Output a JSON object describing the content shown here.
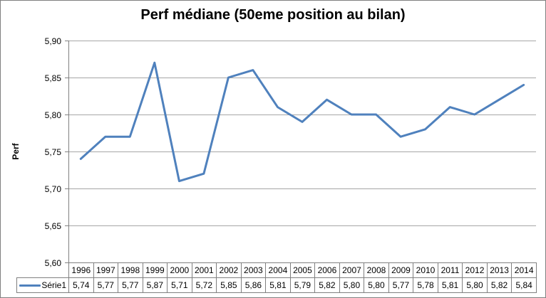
{
  "frame_border_color": "#808080",
  "chart_data": {
    "type": "line",
    "title": "Perf médiane (50eme position au bilan)",
    "ylabel": "Perf",
    "xlabel": "",
    "categories": [
      "1996",
      "1997",
      "1998",
      "1999",
      "2000",
      "2001",
      "2002",
      "2003",
      "2004",
      "2005",
      "2006",
      "2007",
      "2008",
      "2009",
      "2010",
      "2011",
      "2012",
      "2013",
      "2014"
    ],
    "series": [
      {
        "name": "Série1",
        "values": [
          5.74,
          5.77,
          5.77,
          5.87,
          5.71,
          5.72,
          5.85,
          5.86,
          5.81,
          5.79,
          5.82,
          5.8,
          5.8,
          5.77,
          5.78,
          5.81,
          5.8,
          5.82,
          5.84
        ],
        "values_display": [
          "5,74",
          "5,77",
          "5,77",
          "5,87",
          "5,71",
          "5,72",
          "5,85",
          "5,86",
          "5,81",
          "5,79",
          "5,82",
          "5,80",
          "5,80",
          "5,77",
          "5,78",
          "5,81",
          "5,80",
          "5,82",
          "5,84"
        ]
      }
    ],
    "ylim": [
      5.6,
      5.9
    ],
    "ytick_step": 0.05,
    "ytick_labels": [
      "5,90",
      "5,85",
      "5,80",
      "5,75",
      "5,70",
      "5,65",
      "5,60"
    ],
    "grid": "horizontal",
    "legend_position": "data-table-left",
    "line_color": "#4F81BD",
    "gridline_color": "#A6A6A6",
    "axis_color": "#808080",
    "table_border_color": "#808080"
  }
}
